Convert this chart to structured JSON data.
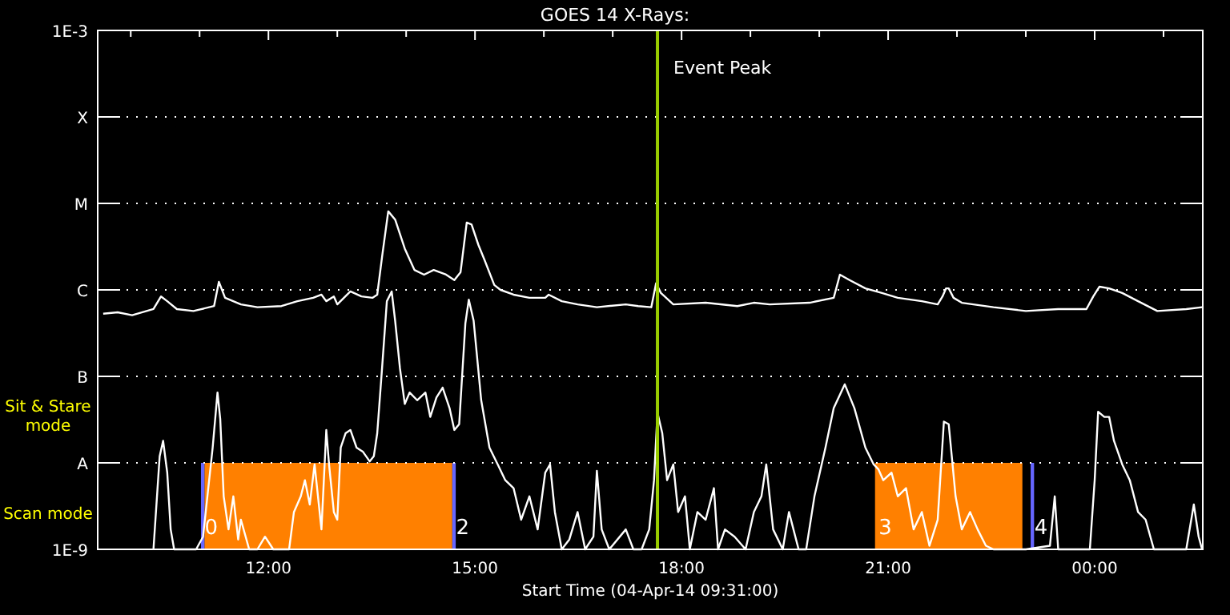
{
  "chart_data": {
    "type": "line",
    "title": "GOES 14 X-Rays:",
    "xlabel": "Start Time (04-Apr-14 09:31:00)",
    "log": "y",
    "grid": "y",
    "line_style": "solid",
    "marker": "none",
    "xlim": [
      9.52,
      25.57
    ],
    "xticks": [
      {
        "value": 10,
        "label": null
      },
      {
        "value": 11,
        "label": null
      },
      {
        "value": 12,
        "label": "12:00"
      },
      {
        "value": 13,
        "label": null
      },
      {
        "value": 14,
        "label": null
      },
      {
        "value": 15,
        "label": "15:00"
      },
      {
        "value": 16,
        "label": null
      },
      {
        "value": 17,
        "label": null
      },
      {
        "value": 18,
        "label": "18:00"
      },
      {
        "value": 19,
        "label": null
      },
      {
        "value": 20,
        "label": null
      },
      {
        "value": 21,
        "label": "21:00"
      },
      {
        "value": 22,
        "label": null
      },
      {
        "value": 23,
        "label": null
      },
      {
        "value": 24,
        "label": "00:00"
      },
      {
        "value": 25,
        "label": null
      }
    ],
    "ylim": [
      1e-09,
      0.001
    ],
    "yticks": [
      {
        "value": 1e-09,
        "label": "1E-9"
      },
      {
        "value": 1e-08,
        "label": "A"
      },
      {
        "value": 1e-07,
        "label": "B"
      },
      {
        "value": 1e-06,
        "label": "C"
      },
      {
        "value": 1e-05,
        "label": "M"
      },
      {
        "value": 0.0001,
        "label": "X"
      },
      {
        "value": 0.001,
        "label": "1E-3"
      }
    ],
    "series": [
      {
        "color": "#ffffff",
        "x": [
          9.6,
          9.81,
          10.02,
          10.33,
          10.44,
          10.53,
          10.67,
          10.91,
          11.21,
          11.28,
          11.37,
          11.6,
          11.84,
          12.19,
          12.42,
          12.65,
          12.77,
          12.84,
          12.95,
          13.0,
          13.19,
          13.35,
          13.51,
          13.58,
          13.65,
          13.74,
          13.84,
          13.98,
          14.12,
          14.26,
          14.4,
          14.58,
          14.7,
          14.79,
          14.88,
          14.95,
          15.05,
          15.14,
          15.28,
          15.37,
          15.56,
          15.79,
          16.02,
          16.07,
          16.26,
          16.49,
          16.77,
          17.19,
          17.37,
          17.56,
          17.63,
          17.7,
          17.88,
          18.35,
          18.81,
          19.05,
          19.28,
          19.86,
          20.21,
          20.3,
          20.44,
          20.67,
          20.91,
          21.14,
          21.49,
          21.72,
          21.79,
          21.84,
          21.88,
          21.95,
          22.07,
          22.53,
          23.0,
          23.47,
          23.88,
          23.98,
          24.07,
          24.21,
          24.4,
          24.63,
          24.91,
          25.33,
          25.56
        ],
        "values": [
          5.3e-07,
          5.5e-07,
          5.1e-07,
          6e-07,
          8.4e-07,
          7.4e-07,
          6e-07,
          5.7e-07,
          6.5e-07,
          1.24e-06,
          8.1e-07,
          6.8e-07,
          6.3e-07,
          6.5e-07,
          7.4e-07,
          8.1e-07,
          8.8e-07,
          7.4e-07,
          8.4e-07,
          6.8e-07,
          9.6e-07,
          8.4e-07,
          8.1e-07,
          8.8e-07,
          2.4e-06,
          8.1e-06,
          6.5e-06,
          3e-06,
          1.7e-06,
          1.5e-06,
          1.7e-06,
          1.5e-06,
          1.3e-06,
          1.6e-06,
          6e-06,
          5.7e-06,
          3.3e-06,
          2.2e-06,
          1.14e-06,
          1e-06,
          8.8e-07,
          8.1e-07,
          8.1e-07,
          8.8e-07,
          7.4e-07,
          6.8e-07,
          6.3e-07,
          6.8e-07,
          6.5e-07,
          6.3e-07,
          1.19e-06,
          9.2e-07,
          6.8e-07,
          7.1e-07,
          6.5e-07,
          7.1e-07,
          6.8e-07,
          7.1e-07,
          8.1e-07,
          1.5e-06,
          1.3e-06,
          1.04e-06,
          9.2e-07,
          8.1e-07,
          7.4e-07,
          6.8e-07,
          8.4e-07,
          1.04e-06,
          1.04e-06,
          8.1e-07,
          7.1e-07,
          6.3e-07,
          5.7e-07,
          6e-07,
          6e-07,
          8.4e-07,
          1.09e-06,
          1.04e-06,
          9.2e-07,
          7.4e-07,
          5.7e-07,
          6e-07,
          6.3e-07
        ]
      },
      {
        "color": "#ffffff",
        "x": [
          10.33,
          10.42,
          10.47,
          10.53,
          10.58,
          10.63,
          10.95,
          11.05,
          11.19,
          11.26,
          11.3,
          11.35,
          11.42,
          11.49,
          11.56,
          11.6,
          11.72,
          11.84,
          11.95,
          12.07,
          12.3,
          12.37,
          12.47,
          12.53,
          12.6,
          12.67,
          12.77,
          12.84,
          12.88,
          12.95,
          13.0,
          13.05,
          13.12,
          13.19,
          13.28,
          13.37,
          13.47,
          13.53,
          13.58,
          13.65,
          13.72,
          13.79,
          13.84,
          13.91,
          13.98,
          14.05,
          14.16,
          14.28,
          14.35,
          14.44,
          14.53,
          14.63,
          14.7,
          14.77,
          14.86,
          14.91,
          14.98,
          15.09,
          15.21,
          15.33,
          15.44,
          15.56,
          15.67,
          15.79,
          15.91,
          16.02,
          16.09,
          16.16,
          16.26,
          16.37,
          16.49,
          16.6,
          16.72,
          16.77,
          16.84,
          16.95,
          17.19,
          17.3,
          17.42,
          17.53,
          17.6,
          17.65,
          17.72,
          17.79,
          17.88,
          17.95,
          18.05,
          18.12,
          18.23,
          18.35,
          18.47,
          18.53,
          18.63,
          18.77,
          18.93,
          19.05,
          19.16,
          19.23,
          19.33,
          19.47,
          19.56,
          19.7,
          19.81,
          19.93,
          20.09,
          20.21,
          20.37,
          20.51,
          20.67,
          20.79,
          20.86,
          20.93,
          21.05,
          21.14,
          21.26,
          21.37,
          21.49,
          21.6,
          21.72,
          21.81,
          21.88,
          21.98,
          22.07,
          22.19,
          22.3,
          22.42,
          22.53,
          23.0,
          23.35,
          23.42,
          23.47,
          23.93,
          24.0,
          24.05,
          24.14,
          24.21,
          24.28,
          24.4,
          24.51,
          24.63,
          24.74,
          24.86,
          25.33,
          25.44,
          25.51,
          25.56
        ],
        "values": [
          1e-09,
          1.19e-08,
          1.8e-08,
          7.7e-09,
          1.7e-09,
          1e-09,
          1e-09,
          1.4e-09,
          1.5e-08,
          6.5e-08,
          3.2e-08,
          4.1e-09,
          1.7e-09,
          4.1e-09,
          1.3e-09,
          2.2e-09,
          1e-09,
          1e-09,
          1.4e-09,
          1e-09,
          1e-09,
          2.7e-09,
          4.1e-09,
          6.3e-09,
          3.3e-09,
          9.6e-09,
          1.7e-09,
          2.4e-08,
          9.6e-09,
          2.7e-09,
          2.2e-09,
          1.5e-08,
          2.2e-08,
          2.4e-08,
          1.5e-08,
          1.35e-08,
          1.04e-08,
          1.19e-08,
          2.2e-08,
          1.24e-07,
          7.4e-07,
          9.6e-07,
          4.4e-07,
          1.24e-07,
          4.8e-08,
          6.5e-08,
          5.3e-08,
          6.5e-08,
          3.4e-08,
          5.7e-08,
          7.4e-08,
          4.3e-08,
          2.4e-08,
          2.8e-08,
          4.1e-07,
          7.7e-07,
          4.4e-07,
          5.3e-08,
          1.5e-08,
          9.6e-09,
          6.3e-09,
          5.1e-09,
          2.2e-09,
          4.1e-09,
          1.7e-09,
          7.7e-09,
          9.6e-09,
          2.7e-09,
          1e-09,
          1.3e-09,
          2.7e-09,
          1e-09,
          1.4e-09,
          8.1e-09,
          1.7e-09,
          1e-09,
          1.7e-09,
          1e-09,
          1e-09,
          1.7e-09,
          6.3e-09,
          3.8e-08,
          2.2e-08,
          6.3e-09,
          9.6e-09,
          2.7e-09,
          4.1e-09,
          1e-09,
          2.7e-09,
          2.2e-09,
          5.1e-09,
          1e-09,
          1.7e-09,
          1.4e-09,
          1e-09,
          2.7e-09,
          4.1e-09,
          9.6e-09,
          1.7e-09,
          1e-09,
          2.7e-09,
          1e-09,
          1e-09,
          4.1e-09,
          1.5e-08,
          4.3e-08,
          8.1e-08,
          4.3e-08,
          1.5e-08,
          9.6e-09,
          8.4e-09,
          6.3e-09,
          7.7e-09,
          4.1e-09,
          5.1e-09,
          1.7e-09,
          2.7e-09,
          1.1e-09,
          2.2e-09,
          3e-08,
          2.8e-08,
          4.1e-09,
          1.7e-09,
          2.7e-09,
          1.7e-09,
          1.1e-09,
          1e-09,
          1e-09,
          1.1e-09,
          4.1e-09,
          1e-09,
          1e-09,
          6.3e-09,
          3.9e-08,
          3.4e-08,
          3.4e-08,
          1.8e-08,
          9.6e-09,
          6.3e-09,
          2.7e-09,
          2.2e-09,
          1e-09,
          1e-09,
          3.3e-09,
          1.4e-09,
          1e-09
        ]
      }
    ],
    "ref_lines": [
      {
        "axis": "x",
        "value": 17.65,
        "label": "Event Peak",
        "color": "#99cc00"
      }
    ],
    "bands": [
      {
        "axis": "x",
        "from": 11.07,
        "to": 14.67,
        "color": "#ff8000"
      },
      {
        "axis": "x",
        "from": 20.81,
        "to": 22.95,
        "color": "#ff8000"
      },
      {
        "axis": "x",
        "from": 11.02,
        "to": 11.07,
        "color": "#6666ff"
      },
      {
        "axis": "x",
        "from": 14.67,
        "to": 14.72,
        "color": "#6666ff"
      },
      {
        "axis": "x",
        "from": 23.07,
        "to": 23.12,
        "color": "#6666ff"
      }
    ],
    "annotations": [
      "Sit & Stare mode",
      "Scan mode",
      {
        "text": "0",
        "x": 11.05,
        "y": 1.5e-09
      },
      {
        "text": "2",
        "x": 14.7,
        "y": 1.5e-09
      },
      {
        "text": "3",
        "x": 20.84,
        "y": 1.5e-09
      },
      {
        "text": "4",
        "x": 23.1,
        "y": 1.5e-09
      }
    ]
  }
}
